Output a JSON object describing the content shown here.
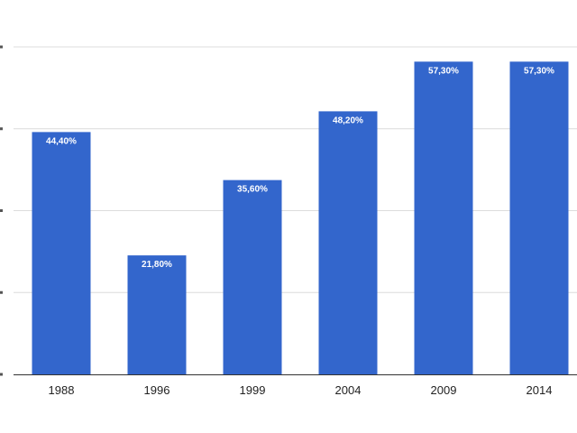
{
  "chart_data": {
    "type": "bar",
    "categories": [
      "1988",
      "1996",
      "1999",
      "2004",
      "2009",
      "2014"
    ],
    "values": [
      44.4,
      21.8,
      35.6,
      48.2,
      57.3,
      57.3
    ],
    "data_labels": [
      "44,40%",
      "21,80%",
      "35,60%",
      "48,20%",
      "57,30%",
      "57,30%"
    ],
    "title": "",
    "xlabel": "",
    "ylabel": "",
    "ylim": [
      0,
      60
    ],
    "y_ticks": [
      0,
      15,
      30,
      45,
      60
    ],
    "grid": true,
    "legend": "none",
    "bar_color": "#3366cc"
  }
}
